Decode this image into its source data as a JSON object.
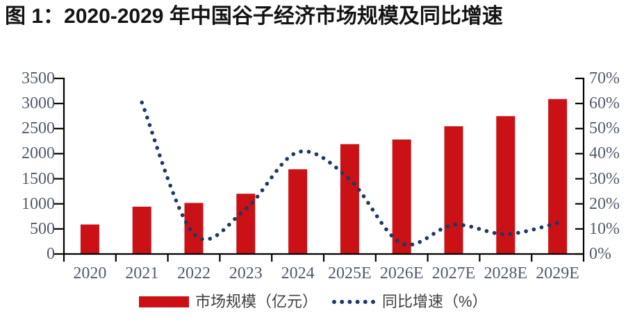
{
  "title": "图 1：2020-2029 年中国谷子经济市场规模及同比增速",
  "legend": {
    "bar_label": "市场规模（亿元）",
    "line_label": "同比增速（%）"
  },
  "colors": {
    "bar": "#C91116",
    "line": "#1F3864",
    "axis": "#000000",
    "axis_label": "#515A6C",
    "title_text": "#141414",
    "legend_text": "#3F3F3F"
  },
  "chart_data": {
    "type": "bar",
    "title": "2020-2029 年中国谷子经济市场规模及同比增速",
    "categories": [
      "2020",
      "2021",
      "2022",
      "2023",
      "2024",
      "2025E",
      "2026E",
      "2027E",
      "2028E",
      "2029E"
    ],
    "series": [
      {
        "name": "市场规模（亿元）",
        "type": "bar",
        "axis": "left",
        "values": [
          588,
          943,
          1018,
          1201,
          1689,
          2190,
          2282,
          2546,
          2748,
          3089
        ]
      },
      {
        "name": "同比增速（%）",
        "type": "dotted-line",
        "axis": "right",
        "values": [
          null,
          60.4,
          8.0,
          18.0,
          40.6,
          29.7,
          4.2,
          11.6,
          7.9,
          12.4
        ]
      }
    ],
    "left_axis": {
      "min": 0,
      "max": 3500,
      "tick_interval": 500,
      "tick_labels": [
        "0",
        "500",
        "1000",
        "1500",
        "2000",
        "2500",
        "3000",
        "3500"
      ]
    },
    "right_axis": {
      "min": 0,
      "max": 70,
      "tick_interval": 10,
      "tick_labels": [
        "0%",
        "10%",
        "20%",
        "30%",
        "40%",
        "50%",
        "60%",
        "70%"
      ]
    },
    "grid": false,
    "legend_position": "bottom"
  }
}
